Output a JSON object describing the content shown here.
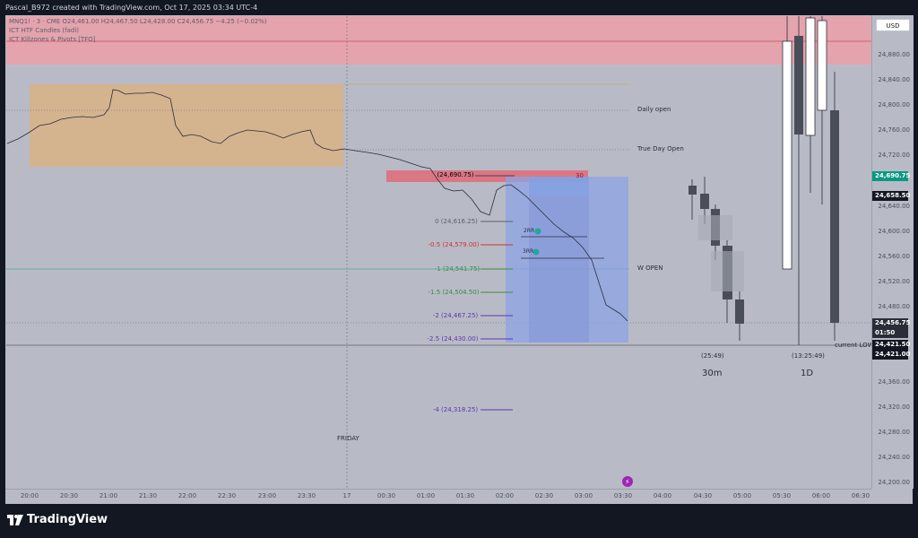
{
  "header": {
    "caption": "Pascal_B972 created with TradingView.com, Oct 17, 2025 03:34 UTC-4"
  },
  "legend": {
    "symbol_line": "MNQ1! · 3 · CME  O24,461.00  H24,467.50  L24,428.00  C24,456.75  −4.25 (−0.02%)",
    "indicator_1": "ICT HTF Candles (fadi)",
    "indicator_2": "ICT Killzones & Pivots [TFO]"
  },
  "currency_button": "USD",
  "price_axis": {
    "ticks": [
      "24,880.00",
      "24,840.00",
      "24,800.00",
      "24,760.00",
      "24,720.00",
      "24,640.00",
      "24,600.00",
      "24,560.00",
      "24,520.00",
      "24,480.00",
      "24,360.00",
      "24,320.00",
      "24,280.00",
      "24,240.00",
      "24,200.00"
    ],
    "tags": [
      {
        "text": "24,690.75",
        "color": "#089981"
      },
      {
        "text": "24,658.50",
        "color": "#131722"
      },
      {
        "text": "24,456.75",
        "color": "#2a2e39"
      },
      {
        "text": "01:50",
        "color": "#2a2e39"
      },
      {
        "text": "24,421.50",
        "color": "#131722"
      },
      {
        "text": "24,421.00",
        "color": "#131722"
      }
    ]
  },
  "time_axis": {
    "ticks": [
      "20:00",
      "20:30",
      "21:00",
      "21:30",
      "22:00",
      "22:30",
      "23:00",
      "23:30",
      "17",
      "00:30",
      "01:00",
      "01:30",
      "02:00",
      "02:30",
      "03:00",
      "03:30",
      "04:00",
      "04:30",
      "05:00",
      "05:30",
      "06:00",
      "06:30"
    ]
  },
  "level_labels": {
    "daily_open": "Daily open",
    "true_day_open": "True Day Open",
    "w_open": "W OPEN",
    "current_low": "current LOW",
    "friday": "FRIDAY"
  },
  "fib_levels": [
    {
      "text": "(24,690.75)",
      "color": "#2a2e39"
    },
    {
      "text": "0 (24,616.25)",
      "color": "#5d606b"
    },
    {
      "text": "-0.5 (24,579.00)",
      "color": "#d32f2f"
    },
    {
      "text": "-1 (24,541.75)",
      "color": "#388e3c"
    },
    {
      "text": "-1.5 (24,504.50)",
      "color": "#388e3c"
    },
    {
      "text": "-2 (24,467.25)",
      "color": "#5e35b1"
    },
    {
      "text": "-2.5 (24,430.00)",
      "color": "#5e35b1"
    },
    {
      "text": "-4 (24,318.25)",
      "color": "#5e35b1"
    }
  ],
  "annotations": {
    "fvg_number": "30",
    "rr_2": "2RR",
    "rr_3": "3RR"
  },
  "htf": {
    "timer_30m": "(25:49)",
    "label_30m": "30m",
    "timer_1d": "(13:25:49)",
    "label_1d": "1D"
  },
  "footer": {
    "brand": "TradingView"
  },
  "colors": {
    "background": "#b8bbc6",
    "premium_zone": "#e8a0aa",
    "asia_box": "#d6b48a",
    "position_box": "#8fa4e0",
    "bull": "#ffffff",
    "bear": "#4a4e59"
  }
}
